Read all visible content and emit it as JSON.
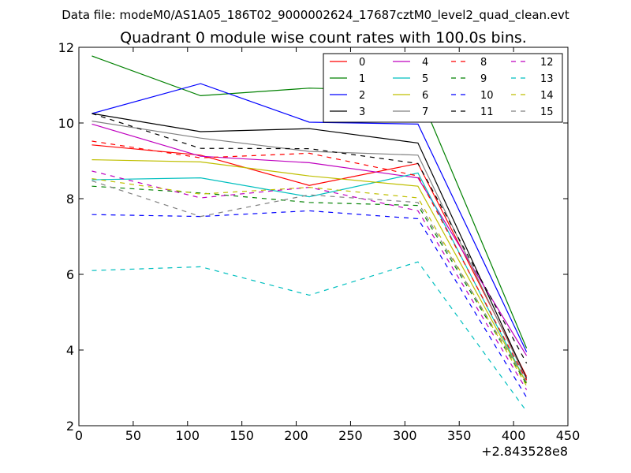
{
  "chart_data": {
    "type": "line",
    "suptitle": "Data file: modeM0/AS1A05_186T02_9000002624_17687cztM0_level2_quad_clean.evt",
    "title": "Quadrant 0 module wise count rates with 100.0s bins.",
    "xlabel": "",
    "ylabel": "",
    "x_offset_label": "+2.843528e8",
    "xlim": [
      0,
      450
    ],
    "ylim": [
      2,
      12
    ],
    "xticks": [
      "0",
      "50",
      "100",
      "150",
      "200",
      "250",
      "300",
      "350",
      "400",
      "450"
    ],
    "yticks": [
      "2",
      "4",
      "6",
      "8",
      "10",
      "12"
    ],
    "x": [
      12,
      112,
      212,
      312,
      412
    ],
    "legend_position": "top-right",
    "series": [
      {
        "name": "0",
        "color": "#ff0000",
        "dash": "solid",
        "values": [
          9.42,
          9.15,
          8.35,
          8.93,
          3.3
        ]
      },
      {
        "name": "1",
        "color": "#008000",
        "dash": "solid",
        "values": [
          11.77,
          10.72,
          10.92,
          10.85,
          4.05
        ]
      },
      {
        "name": "2",
        "color": "#0000ff",
        "dash": "solid",
        "values": [
          10.25,
          11.04,
          10.02,
          9.97,
          3.95
        ]
      },
      {
        "name": "3",
        "color": "#000000",
        "dash": "solid",
        "values": [
          10.25,
          9.77,
          9.85,
          9.47,
          3.25
        ]
      },
      {
        "name": "4",
        "color": "#bf00bf",
        "dash": "solid",
        "values": [
          9.97,
          9.12,
          8.95,
          8.55,
          3.85
        ]
      },
      {
        "name": "5",
        "color": "#00bfbf",
        "dash": "solid",
        "values": [
          8.5,
          8.55,
          8.05,
          8.68,
          3.12
        ]
      },
      {
        "name": "6",
        "color": "#bfbf00",
        "dash": "solid",
        "values": [
          9.03,
          8.97,
          8.6,
          8.33,
          3.12
        ]
      },
      {
        "name": "7",
        "color": "#808080",
        "dash": "solid",
        "values": [
          10.05,
          9.6,
          9.25,
          9.15,
          3.22
        ]
      },
      {
        "name": "8",
        "color": "#ff0000",
        "dash": "dashed",
        "values": [
          9.52,
          9.08,
          9.2,
          8.6,
          3.2
        ]
      },
      {
        "name": "9",
        "color": "#008000",
        "dash": "dashed",
        "values": [
          8.33,
          8.15,
          7.9,
          7.82,
          3.1
        ]
      },
      {
        "name": "10",
        "color": "#0000ff",
        "dash": "dashed",
        "values": [
          7.58,
          7.53,
          7.68,
          7.47,
          2.75
        ]
      },
      {
        "name": "11",
        "color": "#000000",
        "dash": "dashed",
        "values": [
          10.25,
          9.33,
          9.32,
          8.93,
          3.65
        ]
      },
      {
        "name": "12",
        "color": "#bf00bf",
        "dash": "dashed",
        "values": [
          8.73,
          8.02,
          8.3,
          7.68,
          2.95
        ]
      },
      {
        "name": "13",
        "color": "#00bfbf",
        "dash": "dashed",
        "values": [
          6.1,
          6.2,
          5.45,
          6.33,
          2.38
        ]
      },
      {
        "name": "14",
        "color": "#bfbf00",
        "dash": "dashed",
        "values": [
          8.53,
          8.12,
          8.3,
          8.02,
          3.05
        ]
      },
      {
        "name": "15",
        "color": "#808080",
        "dash": "dashed",
        "values": [
          8.47,
          7.53,
          8.1,
          7.9,
          3.15
        ]
      }
    ]
  }
}
